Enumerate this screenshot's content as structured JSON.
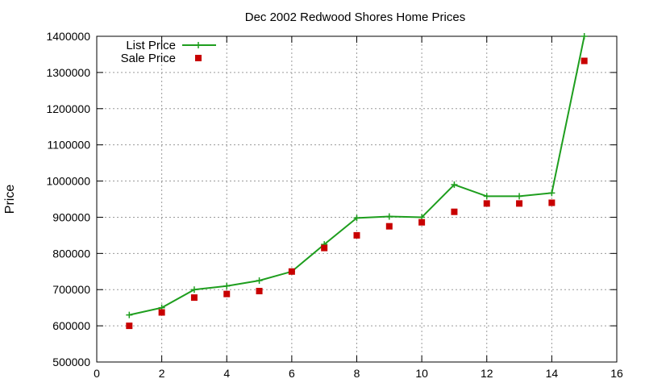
{
  "chart_data": {
    "type": "line",
    "title": "Dec 2002 Redwood Shores Home Prices",
    "xlabel": "",
    "ylabel": "Price",
    "xlim": [
      0,
      16
    ],
    "ylim": [
      500000,
      1400000
    ],
    "xticks": [
      0,
      2,
      4,
      6,
      8,
      10,
      12,
      14,
      16
    ],
    "yticks": [
      500000,
      600000,
      700000,
      800000,
      900000,
      1000000,
      1100000,
      1200000,
      1300000,
      1400000
    ],
    "grid": true,
    "legend_position": "top-left",
    "series": [
      {
        "name": "List Price",
        "style": "line-with-plus-markers",
        "color": "#1e9e1e",
        "x": [
          1,
          2,
          3,
          4,
          5,
          6,
          7,
          8,
          9,
          10,
          11,
          12,
          13,
          14,
          15
        ],
        "y": [
          630000,
          650000,
          700000,
          710000,
          725000,
          750000,
          825000,
          898000,
          902000,
          900000,
          990000,
          958000,
          958000,
          967000,
          1400000
        ]
      },
      {
        "name": "Sale Price",
        "style": "square-markers",
        "color": "#c80000",
        "x": [
          1,
          2,
          3,
          4,
          5,
          6,
          7,
          8,
          9,
          10,
          11,
          12,
          13,
          14,
          15
        ],
        "y": [
          600000,
          637000,
          678000,
          688000,
          696000,
          750000,
          815000,
          850000,
          875000,
          886000,
          915000,
          938000,
          938000,
          940000,
          1332000
        ]
      }
    ]
  }
}
